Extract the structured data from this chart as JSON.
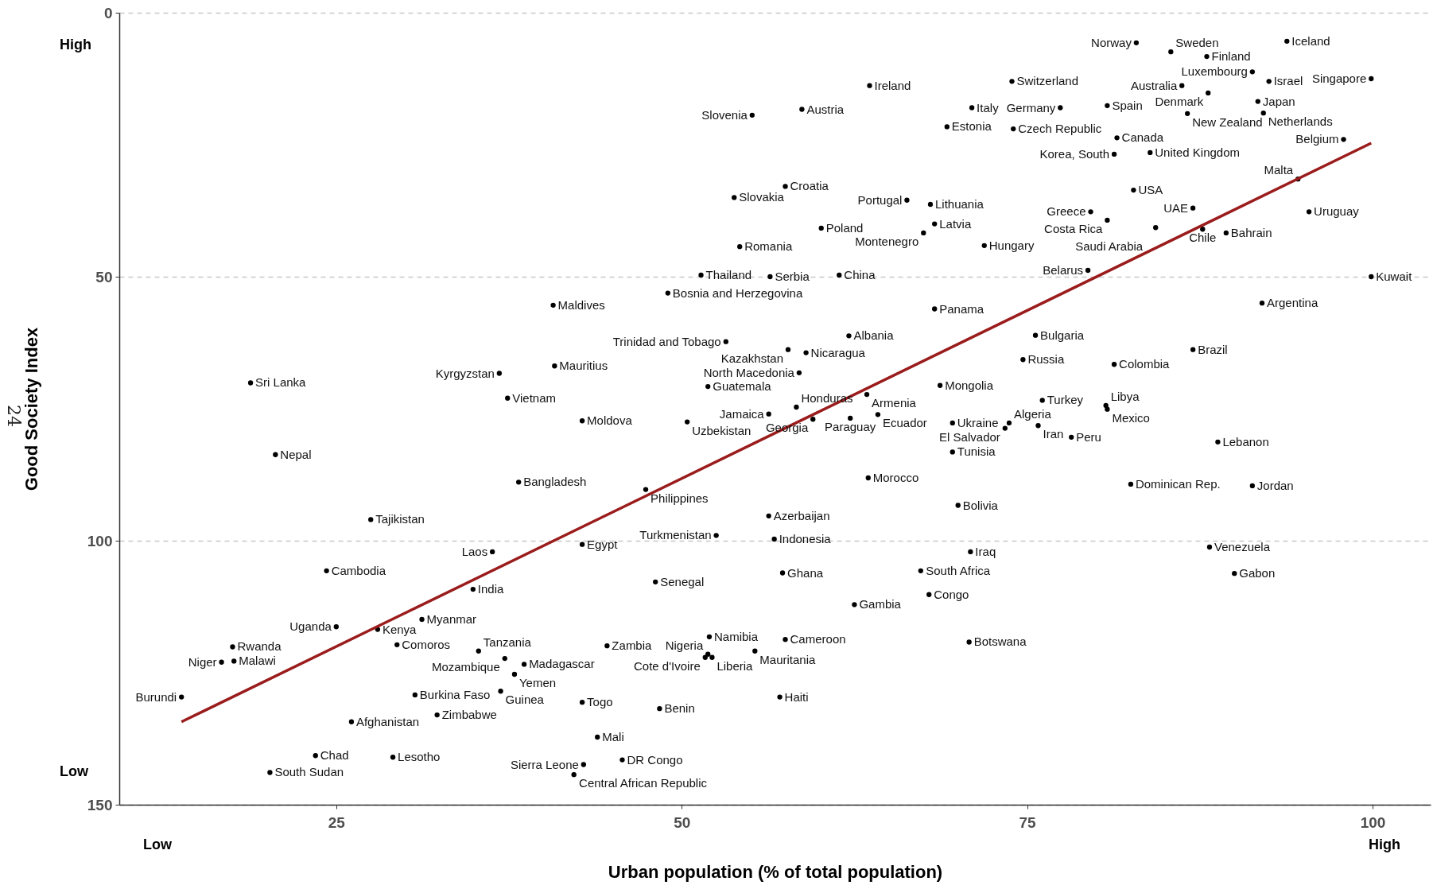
{
  "chart_data": {
    "type": "scatter",
    "xlabel": "Urban population (% of total population)",
    "ylabel": "Good Society Index",
    "xlim": [
      9.3,
      104.2
    ],
    "ylim": [
      150,
      0
    ],
    "xticks": [
      25,
      50,
      75,
      100
    ],
    "yticks": [
      0,
      50,
      100,
      150
    ],
    "grid": "y",
    "marker": "circle",
    "color": "#000000",
    "annotations": [
      "High",
      "Low",
      "Low",
      "High",
      "24"
    ],
    "series": [
      {
        "name": "Iceland",
        "x": [
          93.8
        ],
        "values": [
          5.4
        ]
      },
      {
        "name": "Norway",
        "x": [
          82.9
        ],
        "values": [
          5.7
        ]
      },
      {
        "name": "Sweden",
        "x": [
          85.4
        ],
        "values": [
          7.4
        ]
      },
      {
        "name": "Finland",
        "x": [
          88.0
        ],
        "values": [
          8.3
        ]
      },
      {
        "name": "Singapore",
        "x": [
          99.9
        ],
        "values": [
          12.5
        ]
      },
      {
        "name": "Luxembourg",
        "x": [
          91.3
        ],
        "values": [
          11.2
        ]
      },
      {
        "name": "Ireland",
        "x": [
          63.6
        ],
        "values": [
          13.8
        ]
      },
      {
        "name": "Switzerland",
        "x": [
          73.9
        ],
        "values": [
          13.0
        ]
      },
      {
        "name": "Australia",
        "x": [
          86.2
        ],
        "values": [
          13.8
        ]
      },
      {
        "name": "Israel",
        "x": [
          92.5
        ],
        "values": [
          13.0
        ]
      },
      {
        "name": "Spain",
        "x": [
          80.8
        ],
        "values": [
          17.6
        ]
      },
      {
        "name": "Denmark",
        "x": [
          88.1
        ],
        "values": [
          15.2
        ]
      },
      {
        "name": "Japan",
        "x": [
          91.7
        ],
        "values": [
          16.8
        ]
      },
      {
        "name": "Italy",
        "x": [
          71.0
        ],
        "values": [
          18.0
        ]
      },
      {
        "name": "Germany",
        "x": [
          77.4
        ],
        "values": [
          18.0
        ]
      },
      {
        "name": "Austria",
        "x": [
          58.7
        ],
        "values": [
          18.3
        ]
      },
      {
        "name": "Slovenia",
        "x": [
          55.1
        ],
        "values": [
          19.4
        ]
      },
      {
        "name": "Netherlands",
        "x": [
          92.1
        ],
        "values": [
          19.0
        ]
      },
      {
        "name": "New Zealand",
        "x": [
          86.6
        ],
        "values": [
          19.1
        ]
      },
      {
        "name": "Estonia",
        "x": [
          69.2
        ],
        "values": [
          21.6
        ]
      },
      {
        "name": "Czech Republic",
        "x": [
          74.0
        ],
        "values": [
          22.0
        ]
      },
      {
        "name": "Canada",
        "x": [
          81.5
        ],
        "values": [
          23.7
        ]
      },
      {
        "name": "Belgium",
        "x": [
          97.9
        ],
        "values": [
          24.0
        ]
      },
      {
        "name": "United Kingdom",
        "x": [
          83.9
        ],
        "values": [
          26.5
        ]
      },
      {
        "name": "Korea, South",
        "x": [
          81.3
        ],
        "values": [
          26.8
        ]
      },
      {
        "name": "Malta",
        "x": [
          94.6
        ],
        "values": [
          31.5
        ]
      },
      {
        "name": "Croatia",
        "x": [
          57.5
        ],
        "values": [
          32.9
        ]
      },
      {
        "name": "USA",
        "x": [
          82.7
        ],
        "values": [
          33.6
        ]
      },
      {
        "name": "Slovakia",
        "x": [
          53.8
        ],
        "values": [
          35.0
        ]
      },
      {
        "name": "Portugal",
        "x": [
          66.3
        ],
        "values": [
          35.5
        ]
      },
      {
        "name": "Lithuania",
        "x": [
          68.0
        ],
        "values": [
          36.3
        ]
      },
      {
        "name": "UAE",
        "x": [
          87.0
        ],
        "values": [
          37.0
        ]
      },
      {
        "name": "Greece",
        "x": [
          79.6
        ],
        "values": [
          37.7
        ]
      },
      {
        "name": "Uruguay",
        "x": [
          95.4
        ],
        "values": [
          37.7
        ]
      },
      {
        "name": "Costa Rica",
        "x": [
          80.8
        ],
        "values": [
          39.3
        ]
      },
      {
        "name": "Latvia",
        "x": [
          68.3
        ],
        "values": [
          40.0
        ]
      },
      {
        "name": "Poland",
        "x": [
          60.1
        ],
        "values": [
          40.8
        ]
      },
      {
        "name": "Chile",
        "x": [
          87.7
        ],
        "values": [
          41.0
        ]
      },
      {
        "name": "Saudi Arabia",
        "x": [
          84.3
        ],
        "values": [
          40.7
        ]
      },
      {
        "name": "Bahrain",
        "x": [
          89.4
        ],
        "values": [
          41.7
        ]
      },
      {
        "name": "Montenegro",
        "x": [
          67.5
        ],
        "values": [
          41.7
        ]
      },
      {
        "name": "Romania",
        "x": [
          54.2
        ],
        "values": [
          44.3
        ]
      },
      {
        "name": "Hungary",
        "x": [
          71.9
        ],
        "values": [
          44.1
        ]
      },
      {
        "name": "Belarus",
        "x": [
          79.4
        ],
        "values": [
          48.8
        ]
      },
      {
        "name": "Thailand",
        "x": [
          51.4
        ],
        "values": [
          49.7
        ]
      },
      {
        "name": "Serbia",
        "x": [
          56.4
        ],
        "values": [
          50.0
        ]
      },
      {
        "name": "China",
        "x": [
          61.4
        ],
        "values": [
          49.7
        ]
      },
      {
        "name": "Kuwait",
        "x": [
          99.9
        ],
        "values": [
          50.0
        ]
      },
      {
        "name": "Bosnia and Herzegovina",
        "x": [
          49.0
        ],
        "values": [
          53.1
        ]
      },
      {
        "name": "Maldives",
        "x": [
          40.7
        ],
        "values": [
          55.4
        ]
      },
      {
        "name": "Argentina",
        "x": [
          92.0
        ],
        "values": [
          55.0
        ]
      },
      {
        "name": "Panama",
        "x": [
          68.3
        ],
        "values": [
          56.1
        ]
      },
      {
        "name": "Albania",
        "x": [
          62.1
        ],
        "values": [
          61.2
        ]
      },
      {
        "name": "Bulgaria",
        "x": [
          75.6
        ],
        "values": [
          61.1
        ]
      },
      {
        "name": "Trinidad and Tobago",
        "x": [
          53.2
        ],
        "values": [
          62.3
        ]
      },
      {
        "name": "Kazakhstan",
        "x": [
          57.7
        ],
        "values": [
          63.8
        ]
      },
      {
        "name": "Nicaragua",
        "x": [
          59.0
        ],
        "values": [
          64.4
        ]
      },
      {
        "name": "Brazil",
        "x": [
          87.0
        ],
        "values": [
          63.8
        ]
      },
      {
        "name": "Russia",
        "x": [
          74.7
        ],
        "values": [
          65.7
        ]
      },
      {
        "name": "Mauritius",
        "x": [
          40.8
        ],
        "values": [
          66.9
        ]
      },
      {
        "name": "Colombia",
        "x": [
          81.3
        ],
        "values": [
          66.6
        ]
      },
      {
        "name": "North Macedonia",
        "x": [
          58.5
        ],
        "values": [
          68.2
        ]
      },
      {
        "name": "Kyrgyzstan",
        "x": [
          36.8
        ],
        "values": [
          68.3
        ]
      },
      {
        "name": "Sri Lanka",
        "x": [
          18.8
        ],
        "values": [
          70.1
        ]
      },
      {
        "name": "Mongolia",
        "x": [
          68.7
        ],
        "values": [
          70.6
        ]
      },
      {
        "name": "Guatemala",
        "x": [
          51.9
        ],
        "values": [
          70.8
        ]
      },
      {
        "name": "Armenia",
        "x": [
          63.4
        ],
        "values": [
          72.3
        ]
      },
      {
        "name": "Vietnam",
        "x": [
          37.4
        ],
        "values": [
          73.0
        ]
      },
      {
        "name": "Turkey",
        "x": [
          76.1
        ],
        "values": [
          73.4
        ]
      },
      {
        "name": "Honduras",
        "x": [
          58.3
        ],
        "values": [
          74.7
        ]
      },
      {
        "name": "Libya",
        "x": [
          80.7
        ],
        "values": [
          74.4
        ]
      },
      {
        "name": "Mexico",
        "x": [
          80.8
        ],
        "values": [
          75.1
        ]
      },
      {
        "name": "Jamaica",
        "x": [
          56.3
        ],
        "values": [
          76.0
        ]
      },
      {
        "name": "Ecuador",
        "x": [
          64.2
        ],
        "values": [
          76.1
        ]
      },
      {
        "name": "Paraguay",
        "x": [
          62.2
        ],
        "values": [
          76.8
        ]
      },
      {
        "name": "Georgia",
        "x": [
          59.5
        ],
        "values": [
          77.0
        ]
      },
      {
        "name": "Moldova",
        "x": [
          42.8
        ],
        "values": [
          77.3
        ]
      },
      {
        "name": "Uzbekistan",
        "x": [
          50.4
        ],
        "values": [
          77.5
        ]
      },
      {
        "name": "Ukraine",
        "x": [
          69.6
        ],
        "values": [
          77.7
        ]
      },
      {
        "name": "Algeria",
        "x": [
          73.7
        ],
        "values": [
          77.7
        ]
      },
      {
        "name": "El Salvador",
        "x": [
          73.4
        ],
        "values": [
          78.7
        ]
      },
      {
        "name": "Iran",
        "x": [
          75.8
        ],
        "values": [
          78.2
        ]
      },
      {
        "name": "Peru",
        "x": [
          78.2
        ],
        "values": [
          80.4
        ]
      },
      {
        "name": "Lebanon",
        "x": [
          88.8
        ],
        "values": [
          81.3
        ]
      },
      {
        "name": "Nepal",
        "x": [
          20.6
        ],
        "values": [
          83.7
        ]
      },
      {
        "name": "Tunisia",
        "x": [
          69.6
        ],
        "values": [
          83.2
        ]
      },
      {
        "name": "Morocco",
        "x": [
          63.5
        ],
        "values": [
          88.1
        ]
      },
      {
        "name": "Bangladesh",
        "x": [
          38.2
        ],
        "values": [
          88.9
        ]
      },
      {
        "name": "Dominican Rep.",
        "x": [
          82.5
        ],
        "values": [
          89.3
        ]
      },
      {
        "name": "Jordan",
        "x": [
          91.3
        ],
        "values": [
          89.6
        ]
      },
      {
        "name": "Philippines",
        "x": [
          47.4
        ],
        "values": [
          90.3
        ]
      },
      {
        "name": "Bolivia",
        "x": [
          70.0
        ],
        "values": [
          93.3
        ]
      },
      {
        "name": "Azerbaijan",
        "x": [
          56.3
        ],
        "values": [
          95.3
        ]
      },
      {
        "name": "Tajikistan",
        "x": [
          27.5
        ],
        "values": [
          96.0
        ]
      },
      {
        "name": "Turkmenistan",
        "x": [
          52.5
        ],
        "values": [
          99.0
        ]
      },
      {
        "name": "Indonesia",
        "x": [
          56.7
        ],
        "values": [
          99.7
        ]
      },
      {
        "name": "Egypt",
        "x": [
          42.8
        ],
        "values": [
          100.7
        ]
      },
      {
        "name": "Venezuela",
        "x": [
          88.2
        ],
        "values": [
          101.2
        ]
      },
      {
        "name": "Laos",
        "x": [
          36.3
        ],
        "values": [
          102.1
        ]
      },
      {
        "name": "Iraq",
        "x": [
          70.9
        ],
        "values": [
          102.1
        ]
      },
      {
        "name": "Cambodia",
        "x": [
          24.3
        ],
        "values": [
          105.7
        ]
      },
      {
        "name": "South Africa",
        "x": [
          67.3
        ],
        "values": [
          105.7
        ]
      },
      {
        "name": "Ghana",
        "x": [
          57.3
        ],
        "values": [
          106.1
        ]
      },
      {
        "name": "Gabon",
        "x": [
          90.0
        ],
        "values": [
          106.2
        ]
      },
      {
        "name": "Senegal",
        "x": [
          48.1
        ],
        "values": [
          107.8
        ]
      },
      {
        "name": "India",
        "x": [
          34.9
        ],
        "values": [
          109.2
        ]
      },
      {
        "name": "Congo",
        "x": [
          67.9
        ],
        "values": [
          110.2
        ]
      },
      {
        "name": "Gambia",
        "x": [
          62.5
        ],
        "values": [
          112.1
        ]
      },
      {
        "name": "Myanmar",
        "x": [
          31.2
        ],
        "values": [
          114.9
        ]
      },
      {
        "name": "Uganda",
        "x": [
          25.0
        ],
        "values": [
          116.3
        ]
      },
      {
        "name": "Kenya",
        "x": [
          28.0
        ],
        "values": [
          116.8
        ]
      },
      {
        "name": "Namibia",
        "x": [
          52.0
        ],
        "values": [
          118.2
        ]
      },
      {
        "name": "Cameroon",
        "x": [
          57.5
        ],
        "values": [
          118.7
        ]
      },
      {
        "name": "Zambia",
        "x": [
          44.6
        ],
        "values": [
          119.9
        ]
      },
      {
        "name": "Rwanda",
        "x": [
          17.5
        ],
        "values": [
          120.1
        ]
      },
      {
        "name": "Botswana",
        "x": [
          70.8
        ],
        "values": [
          119.2
        ]
      },
      {
        "name": "Comoros",
        "x": [
          29.4
        ],
        "values": [
          119.7
        ]
      },
      {
        "name": "Tanzania",
        "x": [
          35.3
        ],
        "values": [
          120.9
        ]
      },
      {
        "name": "Mauritania",
        "x": [
          55.3
        ],
        "values": [
          120.9
        ]
      },
      {
        "name": "Nigeria",
        "x": [
          51.9
        ],
        "values": [
          121.5
        ]
      },
      {
        "name": "Cote d'Ivoire",
        "x": [
          51.7
        ],
        "values": [
          122.1
        ]
      },
      {
        "name": "Liberia",
        "x": [
          52.2
        ],
        "values": [
          122.1
        ]
      },
      {
        "name": "Madagascar",
        "x": [
          38.6
        ],
        "values": [
          123.4
        ]
      },
      {
        "name": "Mozambique",
        "x": [
          37.2
        ],
        "values": [
          122.3
        ]
      },
      {
        "name": "Niger",
        "x": [
          16.7
        ],
        "values": [
          123.0
        ]
      },
      {
        "name": "Malawi",
        "x": [
          17.6
        ],
        "values": [
          122.8
        ]
      },
      {
        "name": "Yemen",
        "x": [
          37.9
        ],
        "values": [
          125.3
        ]
      },
      {
        "name": "Haiti",
        "x": [
          57.1
        ],
        "values": [
          129.6
        ]
      },
      {
        "name": "Burundi",
        "x": [
          13.8
        ],
        "values": [
          129.6
        ]
      },
      {
        "name": "Burkina Faso",
        "x": [
          30.7
        ],
        "values": [
          129.2
        ]
      },
      {
        "name": "Guinea",
        "x": [
          36.9
        ],
        "values": [
          128.5
        ]
      },
      {
        "name": "Togo",
        "x": [
          42.8
        ],
        "values": [
          130.6
        ]
      },
      {
        "name": "Benin",
        "x": [
          48.4
        ],
        "values": [
          131.8
        ]
      },
      {
        "name": "Zimbabwe",
        "x": [
          32.3
        ],
        "values": [
          133.0
        ]
      },
      {
        "name": "Afghanistan",
        "x": [
          26.1
        ],
        "values": [
          134.3
        ]
      },
      {
        "name": "Mali",
        "x": [
          43.9
        ],
        "values": [
          137.2
        ]
      },
      {
        "name": "Chad",
        "x": [
          23.5
        ],
        "values": [
          140.7
        ]
      },
      {
        "name": "Lesotho",
        "x": [
          29.1
        ],
        "values": [
          141.0
        ]
      },
      {
        "name": "DR Congo",
        "x": [
          45.7
        ],
        "values": [
          141.5
        ]
      },
      {
        "name": "Sierra Leone",
        "x": [
          42.9
        ],
        "values": [
          142.4
        ]
      },
      {
        "name": "South Sudan",
        "x": [
          20.2
        ],
        "values": [
          143.9
        ]
      },
      {
        "name": "Central African Republic",
        "x": [
          42.2
        ],
        "values": [
          144.3
        ]
      },
      {
        "type": "line",
        "color": "#9b1c1c",
        "marker": "none",
        "x": [
          13.8,
          99.9
        ],
        "values": [
          134.3,
          24.7
        ]
      }
    ]
  }
}
